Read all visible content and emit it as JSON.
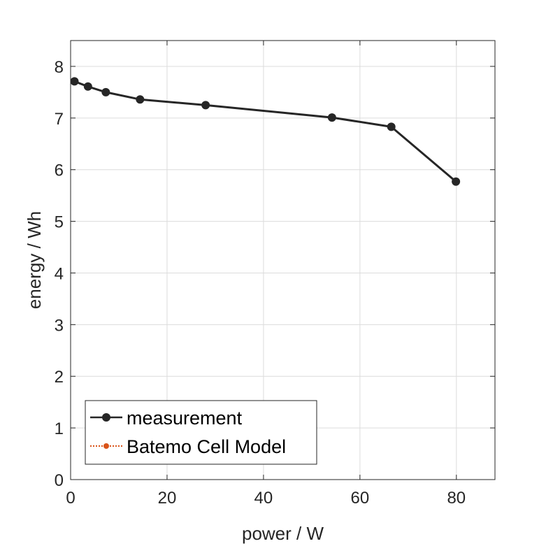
{
  "chart_data": {
    "type": "line",
    "xlabel": "power / W",
    "ylabel": "energy / Wh",
    "xlim": [
      0,
      88
    ],
    "ylim": [
      0,
      8.5
    ],
    "xticks": [
      0,
      20,
      40,
      60,
      80
    ],
    "yticks": [
      0,
      1,
      2,
      3,
      4,
      5,
      6,
      7,
      8
    ],
    "grid": true,
    "legend_position": "bottom-left",
    "series": [
      {
        "name": "measurement",
        "color": "#262626",
        "marker": "filled-circle",
        "line": "solid",
        "x": [
          0.8,
          3.6,
          7.3,
          14.4,
          28.0,
          54.2,
          66.5,
          79.9
        ],
        "y": [
          7.71,
          7.61,
          7.5,
          7.36,
          7.25,
          7.01,
          6.83,
          5.77
        ]
      },
      {
        "name": "Batemo Cell Model",
        "color": "#d95319",
        "marker": "filled-circle",
        "line": "dotted",
        "x": [],
        "y": []
      }
    ]
  }
}
